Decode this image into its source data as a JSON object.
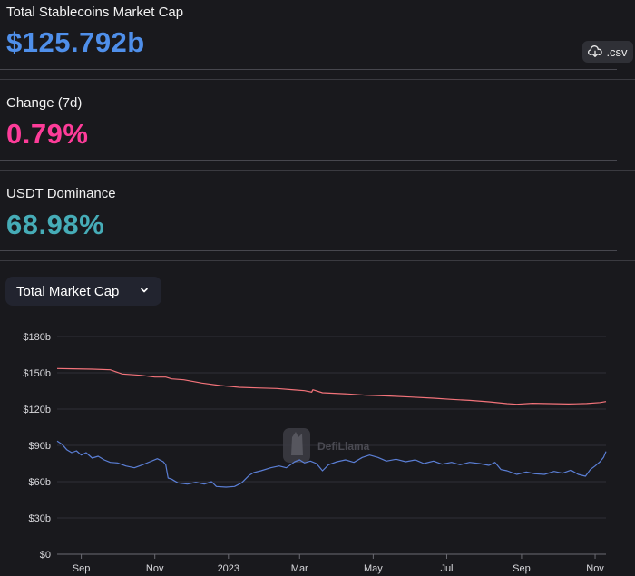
{
  "stats": {
    "market_cap": {
      "label": "Total Stablecoins Market Cap",
      "value": "$125.792b",
      "color": "#4f8fea"
    },
    "change": {
      "label": "Change (7d)",
      "value": "0.79%",
      "color": "#fd3c99"
    },
    "dominance": {
      "label": "USDT Dominance",
      "value": "68.98%",
      "color": "#46acb7"
    }
  },
  "csv_button": {
    "label": ".csv",
    "icon": "cloud-download-icon"
  },
  "selector": {
    "selected": "Total Market Cap",
    "icon": "chevron-down-icon"
  },
  "watermark": {
    "text": "DefiLlama",
    "icon": "defillama-logo"
  },
  "chart_data": {
    "type": "line",
    "title": "",
    "xlabel": "",
    "ylabel": "",
    "ylim": [
      0,
      180
    ],
    "y_unit": "billion USD",
    "y_ticks": [
      "$0",
      "$30b",
      "$60b",
      "$90b",
      "$120b",
      "$150b",
      "$180b"
    ],
    "y_tick_values": [
      0,
      30,
      60,
      90,
      120,
      150,
      180
    ],
    "x_ticks": [
      {
        "label": "Sep",
        "date": "2022-09-01"
      },
      {
        "label": "Nov",
        "date": "2022-11-01"
      },
      {
        "label": "2023",
        "date": "2023-01-01"
      },
      {
        "label": "Mar",
        "date": "2023-03-01"
      },
      {
        "label": "May",
        "date": "2023-05-01"
      },
      {
        "label": "Jul",
        "date": "2023-07-01"
      },
      {
        "label": "Sep",
        "date": "2023-09-01"
      },
      {
        "label": "Nov",
        "date": "2023-11-01"
      }
    ],
    "xlim": [
      "2022-08-12",
      "2023-11-10"
    ],
    "grid": true,
    "legend": "none",
    "series": [
      {
        "color": "#f3737a",
        "points": [
          [
            "2022-08-12",
            153.5
          ],
          [
            "2022-08-25",
            153.3
          ],
          [
            "2022-09-10",
            153.0
          ],
          [
            "2022-09-25",
            152.5
          ],
          [
            "2022-10-05",
            149.0
          ],
          [
            "2022-10-20",
            148.0
          ],
          [
            "2022-11-01",
            146.5
          ],
          [
            "2022-11-10",
            146.5
          ],
          [
            "2022-11-15",
            145.0
          ],
          [
            "2022-11-25",
            144.2
          ],
          [
            "2022-12-10",
            141.5
          ],
          [
            "2022-12-25",
            139.5
          ],
          [
            "2023-01-10",
            138.0
          ],
          [
            "2023-01-25",
            137.5
          ],
          [
            "2023-02-10",
            137.0
          ],
          [
            "2023-02-25",
            135.8
          ],
          [
            "2023-03-05",
            135.2
          ],
          [
            "2023-03-11",
            134.0
          ],
          [
            "2023-03-12",
            136.0
          ],
          [
            "2023-03-20",
            133.5
          ],
          [
            "2023-04-10",
            132.5
          ],
          [
            "2023-04-25",
            131.5
          ],
          [
            "2023-05-15",
            130.8
          ],
          [
            "2023-06-01",
            130.0
          ],
          [
            "2023-06-20",
            129.0
          ],
          [
            "2023-07-05",
            128.0
          ],
          [
            "2023-07-20",
            127.2
          ],
          [
            "2023-08-05",
            126.0
          ],
          [
            "2023-08-20",
            124.5
          ],
          [
            "2023-08-28",
            124.0
          ],
          [
            "2023-09-10",
            124.8
          ],
          [
            "2023-09-25",
            124.5
          ],
          [
            "2023-10-10",
            124.2
          ],
          [
            "2023-10-25",
            124.6
          ],
          [
            "2023-11-05",
            125.4
          ],
          [
            "2023-11-10",
            126.2
          ]
        ]
      },
      {
        "color": "#5b7fd6",
        "points": [
          [
            "2022-08-12",
            93.5
          ],
          [
            "2022-08-16",
            91.0
          ],
          [
            "2022-08-20",
            86.5
          ],
          [
            "2022-08-24",
            84.0
          ],
          [
            "2022-08-28",
            85.5
          ],
          [
            "2022-09-01",
            82.0
          ],
          [
            "2022-09-05",
            84.0
          ],
          [
            "2022-09-10",
            79.5
          ],
          [
            "2022-09-15",
            81.0
          ],
          [
            "2022-09-20",
            78.0
          ],
          [
            "2022-09-25",
            76.0
          ],
          [
            "2022-10-01",
            75.5
          ],
          [
            "2022-10-08",
            73.0
          ],
          [
            "2022-10-15",
            71.5
          ],
          [
            "2022-10-22",
            74.0
          ],
          [
            "2022-10-28",
            76.5
          ],
          [
            "2022-11-03",
            79.0
          ],
          [
            "2022-11-08",
            76.5
          ],
          [
            "2022-11-10",
            74.0
          ],
          [
            "2022-11-12",
            63.0
          ],
          [
            "2022-11-15",
            62.0
          ],
          [
            "2022-11-20",
            59.0
          ],
          [
            "2022-11-28",
            58.0
          ],
          [
            "2022-12-05",
            59.5
          ],
          [
            "2022-12-12",
            58.0
          ],
          [
            "2022-12-18",
            60.0
          ],
          [
            "2022-12-22",
            56.0
          ],
          [
            "2022-12-30",
            55.5
          ],
          [
            "2023-01-06",
            56.0
          ],
          [
            "2023-01-12",
            59.0
          ],
          [
            "2023-01-18",
            65.0
          ],
          [
            "2023-01-22",
            67.5
          ],
          [
            "2023-01-28",
            69.0
          ],
          [
            "2023-02-05",
            71.5
          ],
          [
            "2023-02-12",
            73.0
          ],
          [
            "2023-02-18",
            71.5
          ],
          [
            "2023-02-25",
            76.5
          ],
          [
            "2023-03-01",
            78.0
          ],
          [
            "2023-03-05",
            75.5
          ],
          [
            "2023-03-10",
            77.0
          ],
          [
            "2023-03-15",
            75.0
          ],
          [
            "2023-03-20",
            69.0
          ],
          [
            "2023-03-25",
            74.0
          ],
          [
            "2023-04-01",
            76.5
          ],
          [
            "2023-04-08",
            78.0
          ],
          [
            "2023-04-15",
            76.0
          ],
          [
            "2023-04-22",
            80.0
          ],
          [
            "2023-04-28",
            82.0
          ],
          [
            "2023-05-05",
            80.0
          ],
          [
            "2023-05-12",
            77.0
          ],
          [
            "2023-05-20",
            78.5
          ],
          [
            "2023-05-28",
            76.5
          ],
          [
            "2023-06-05",
            78.0
          ],
          [
            "2023-06-12",
            75.0
          ],
          [
            "2023-06-20",
            77.0
          ],
          [
            "2023-06-27",
            74.5
          ],
          [
            "2023-07-05",
            76.0
          ],
          [
            "2023-07-12",
            74.0
          ],
          [
            "2023-07-20",
            76.0
          ],
          [
            "2023-07-28",
            75.0
          ],
          [
            "2023-08-05",
            73.5
          ],
          [
            "2023-08-10",
            76.0
          ],
          [
            "2023-08-15",
            70.0
          ],
          [
            "2023-08-20",
            69.0
          ],
          [
            "2023-08-28",
            66.0
          ],
          [
            "2023-09-05",
            68.0
          ],
          [
            "2023-09-12",
            66.5
          ],
          [
            "2023-09-20",
            66.0
          ],
          [
            "2023-09-28",
            68.5
          ],
          [
            "2023-10-05",
            67.0
          ],
          [
            "2023-10-12",
            69.5
          ],
          [
            "2023-10-18",
            66.0
          ],
          [
            "2023-10-24",
            64.5
          ],
          [
            "2023-10-28",
            70.0
          ],
          [
            "2023-11-01",
            73.0
          ],
          [
            "2023-11-05",
            76.5
          ],
          [
            "2023-11-08",
            80.0
          ],
          [
            "2023-11-10",
            85.0
          ]
        ]
      }
    ]
  }
}
